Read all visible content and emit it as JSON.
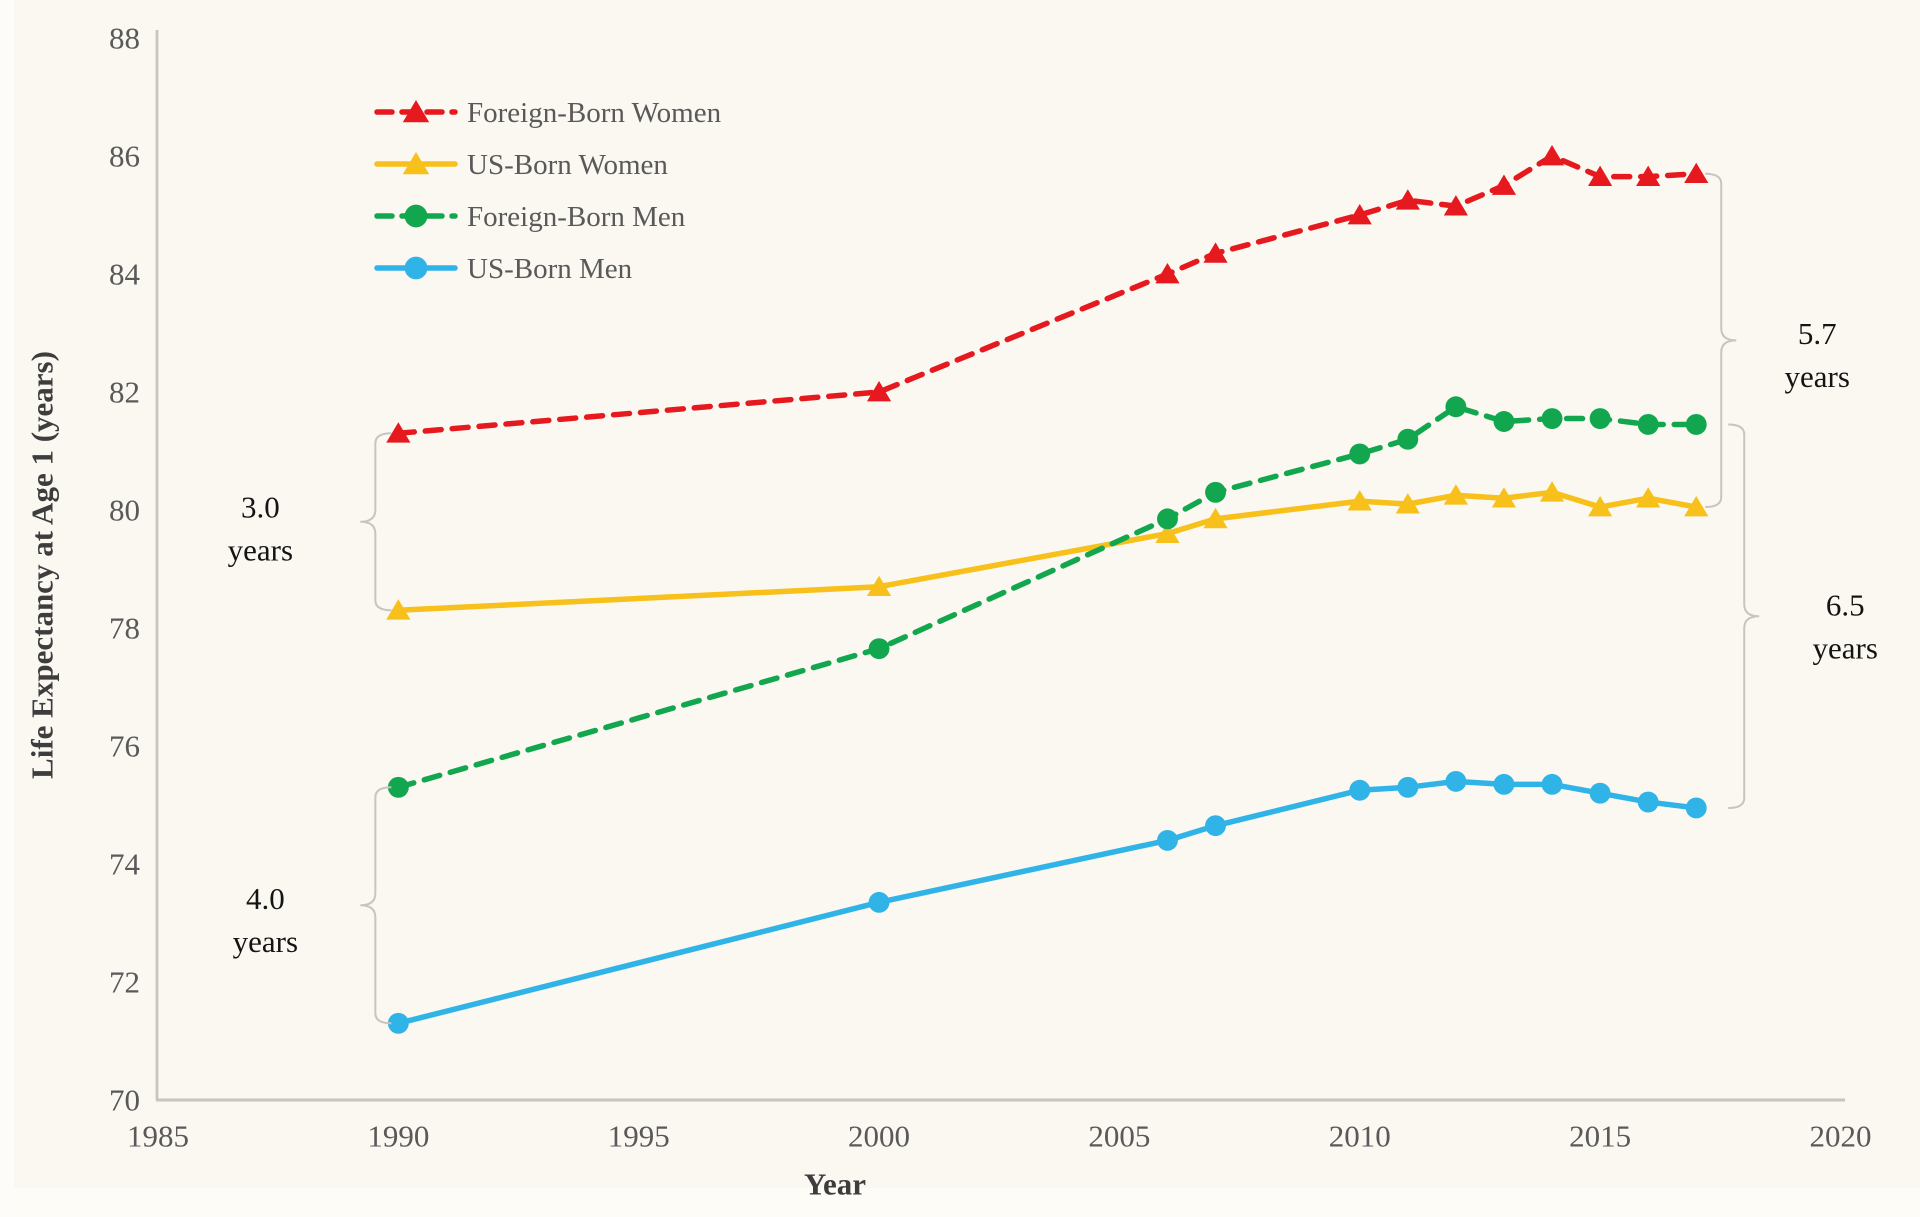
{
  "figure": {
    "colors": {
      "background": "#faf8f1",
      "bottom_band": "#fdfcf7",
      "edge_band": "#fdfcf8",
      "axis": "#c7c5bf",
      "tick_text": "#595959",
      "legend_text": "#595959",
      "axis_title_text": "#3d3d3d",
      "annotation_text": "#141414",
      "brace": "#c7c5bf"
    },
    "legend": [
      {
        "label": "Foreign-Born Women",
        "color": "#e5191e",
        "line_style": "dashed",
        "marker": "triangle"
      },
      {
        "label": "US-Born Women",
        "color": "#f8c01a",
        "line_style": "solid",
        "marker": "triangle"
      },
      {
        "label": "Foreign-Born Men",
        "color": "#12a74f",
        "line_style": "dashed",
        "marker": "circle"
      },
      {
        "label": "US-Born Men",
        "color": "#30b4e8",
        "line_style": "solid",
        "marker": "circle"
      }
    ]
  },
  "chart_data": {
    "type": "line",
    "title": "",
    "xlabel": "Year",
    "ylabel": "Life Expectancy at Age 1 (years)",
    "xlim": [
      1985,
      2020
    ],
    "ylim": [
      70,
      88
    ],
    "x_ticks": [
      1985,
      1990,
      1995,
      2000,
      2005,
      2010,
      2015,
      2020
    ],
    "y_ticks": [
      70,
      72,
      74,
      76,
      78,
      80,
      82,
      84,
      86,
      88
    ],
    "grid": false,
    "legend_position": "upper-left-inside",
    "x": [
      1990,
      2000,
      2006,
      2007,
      2010,
      2011,
      2012,
      2013,
      2014,
      2015,
      2016,
      2017
    ],
    "series": [
      {
        "name": "Foreign-Born Women",
        "color": "#e5191e",
        "line_style": "dashed",
        "marker": "triangle",
        "values": [
          81.3,
          82.0,
          84.0,
          84.35,
          85.0,
          85.25,
          85.15,
          85.5,
          86.0,
          85.65,
          85.65,
          85.7
        ]
      },
      {
        "name": "US-Born Women",
        "color": "#f8c01a",
        "line_style": "solid",
        "marker": "triangle",
        "values": [
          78.3,
          78.7,
          79.6,
          79.85,
          80.15,
          80.1,
          80.25,
          80.2,
          80.3,
          80.05,
          80.2,
          80.05
        ]
      },
      {
        "name": "Foreign-Born Men",
        "color": "#12a74f",
        "line_style": "dashed",
        "marker": "circle",
        "values": [
          75.3,
          77.65,
          79.85,
          80.3,
          80.95,
          81.2,
          81.75,
          81.5,
          81.55,
          81.55,
          81.45,
          81.45
        ]
      },
      {
        "name": "US-Born Men",
        "color": "#30b4e8",
        "line_style": "solid",
        "marker": "circle",
        "values": [
          71.3,
          73.35,
          74.4,
          74.65,
          75.25,
          75.3,
          75.4,
          75.35,
          75.35,
          75.2,
          75.05,
          74.95
        ]
      }
    ],
    "annotations": [
      {
        "text": "3.0 years",
        "lines": [
          "3.0",
          "years"
        ],
        "side": "left",
        "at_year": 1990,
        "between": [
          "Foreign-Born Women",
          "US-Born Women"
        ]
      },
      {
        "text": "4.0 years",
        "lines": [
          "4.0",
          "years"
        ],
        "side": "left",
        "at_year": 1990,
        "between": [
          "Foreign-Born Men",
          "US-Born Men"
        ]
      },
      {
        "text": "5.7 years",
        "lines": [
          "5.7",
          "years"
        ],
        "side": "right",
        "at_year": 2017,
        "between": [
          "Foreign-Born Women",
          "US-Born Women"
        ]
      },
      {
        "text": "6.5 years",
        "lines": [
          "6.5",
          "years"
        ],
        "side": "right",
        "at_year": 2017,
        "between": [
          "Foreign-Born Men",
          "US-Born Men"
        ]
      }
    ]
  }
}
